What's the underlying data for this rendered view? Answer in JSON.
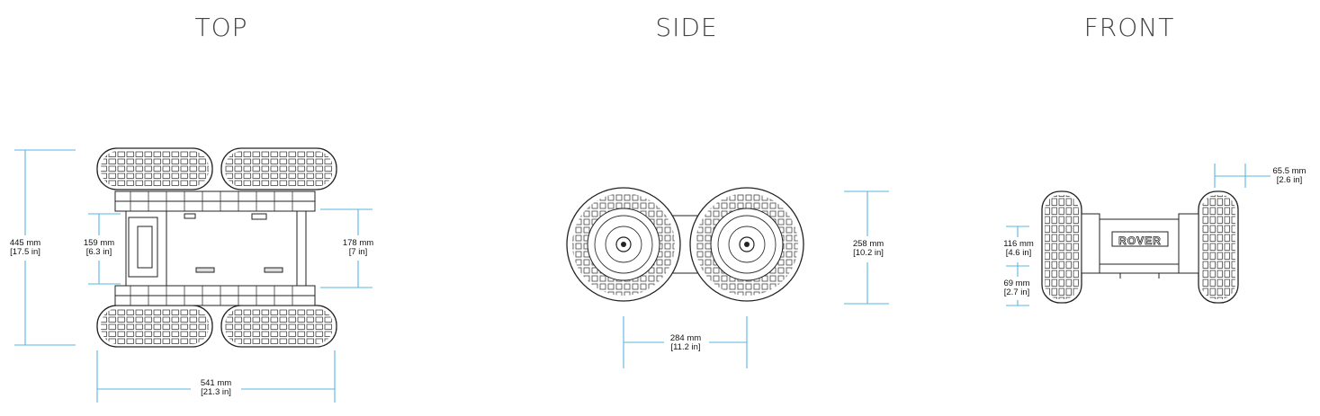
{
  "views": {
    "top": {
      "title": "TOP",
      "dims": {
        "overall_width": {
          "mm": "445 mm",
          "in": "[17.5 in]"
        },
        "body_width": {
          "mm": "159 mm",
          "in": "[6.3 in]"
        },
        "track_width": {
          "mm": "178 mm",
          "in": "[7 in]"
        },
        "overall_length": {
          "mm": "541 mm",
          "in": "[21.3 in]"
        }
      }
    },
    "side": {
      "title": "SIDE",
      "dims": {
        "height": {
          "mm": "258 mm",
          "in": "[10.2 in]"
        },
        "wheelbase": {
          "mm": "284 mm",
          "in": "[11.2 in]"
        }
      }
    },
    "front": {
      "title": "FRONT",
      "logo_text": "ROVER",
      "dims": {
        "wheel_width": {
          "mm": "65.5 mm",
          "in": "[2.6 in]"
        },
        "body_height": {
          "mm": "116 mm",
          "in": "[4.6 in]"
        },
        "ground_clearance": {
          "mm": "69 mm",
          "in": "[2.7 in]"
        }
      }
    }
  },
  "colors": {
    "dimension_line": "#5ab4e3",
    "ink": "#222222",
    "title": "#444444"
  }
}
